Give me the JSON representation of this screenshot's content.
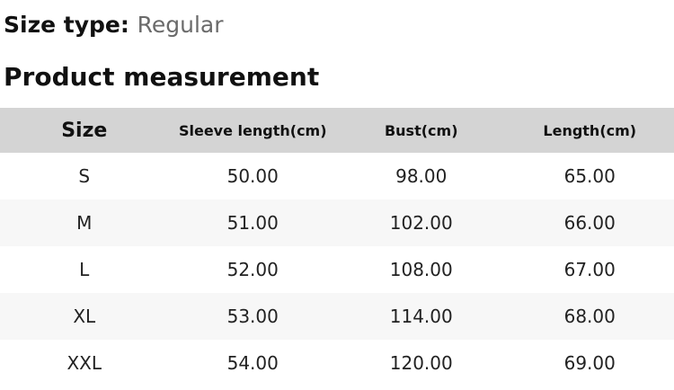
{
  "colors": {
    "header_row_bg": "#d4d4d4",
    "alt_row_bg": "#f7f7f7",
    "heading_text": "#111111",
    "size_type_value_text": "#6a6a6a",
    "cell_text": "#222222"
  },
  "size_type": {
    "label": "Size type:",
    "value": "Regular"
  },
  "section_title": "Product measurement",
  "table": {
    "headers": [
      "Size",
      "Sleeve length(cm)",
      "Bust(cm)",
      "Length(cm)"
    ],
    "rows": [
      {
        "size": "S",
        "sleeve": "50.00",
        "bust": "98.00",
        "length": "65.00"
      },
      {
        "size": "M",
        "sleeve": "51.00",
        "bust": "102.00",
        "length": "66.00"
      },
      {
        "size": "L",
        "sleeve": "52.00",
        "bust": "108.00",
        "length": "67.00"
      },
      {
        "size": "XL",
        "sleeve": "53.00",
        "bust": "114.00",
        "length": "68.00"
      },
      {
        "size": "XXL",
        "sleeve": "54.00",
        "bust": "120.00",
        "length": "69.00"
      }
    ]
  }
}
